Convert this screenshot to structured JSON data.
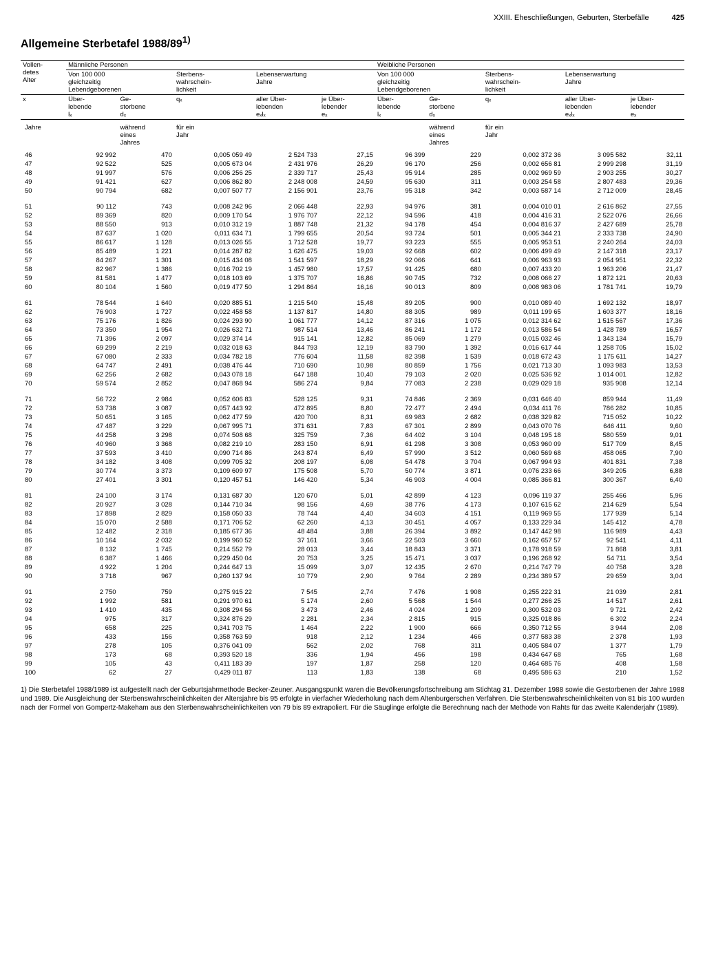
{
  "header": {
    "section": "XXIII. Eheschließungen, Geburten, Sterbefälle",
    "page": "425"
  },
  "title": "Allgemeine Sterbetafel 1988/89",
  "title_sup": "1)",
  "col_labels": {
    "age_top": "Vollen-\ndetes\nAlter",
    "male": "Männliche Personen",
    "female": "Weibliche Personen",
    "von100k": "Von 100 000\ngleichzeitig\nLebendgeborenen",
    "sterb": "Sterbens-\nwahrschein-\nlichkeit",
    "leb": "Lebenserwartung\nJahre",
    "uber": "Über-\nlebende\nlₓ",
    "gest": "Ge-\nstorbene\ndₓ",
    "qx": "qₓ",
    "aller": "aller Über-\nlebenden\neₓlₓ",
    "je": "je Über-\nlebender\neₓ",
    "x": "x",
    "jahre": "Jahre",
    "wahrend": "während\neines\nJahres",
    "furein": "für ein\nJahr"
  },
  "groups": [
    [
      [
        "46",
        "92 992",
        "470",
        "0,005 059 49",
        "2 524 733",
        "27,15",
        "96 399",
        "229",
        "0,002 372 36",
        "3 095 582",
        "32,11"
      ],
      [
        "47",
        "92 522",
        "525",
        "0,005 673 04",
        "2 431 976",
        "26,29",
        "96 170",
        "256",
        "0,002 656 81",
        "2 999 298",
        "31,19"
      ],
      [
        "48",
        "91 997",
        "576",
        "0,006 256 25",
        "2 339 717",
        "25,43",
        "95 914",
        "285",
        "0,002 969 59",
        "2 903 255",
        "30,27"
      ],
      [
        "49",
        "91 421",
        "627",
        "0,006 862 80",
        "2 248 008",
        "24,59",
        "95 630",
        "311",
        "0,003 254 58",
        "2 807 483",
        "29,36"
      ],
      [
        "50",
        "90 794",
        "682",
        "0,007 507 77",
        "2 156 901",
        "23,76",
        "95 318",
        "342",
        "0,003 587 14",
        "2 712 009",
        "28,45"
      ]
    ],
    [
      [
        "51",
        "90 112",
        "743",
        "0,008 242 96",
        "2 066 448",
        "22,93",
        "94 976",
        "381",
        "0,004 010 01",
        "2 616 862",
        "27,55"
      ],
      [
        "52",
        "89 369",
        "820",
        "0,009 170 54",
        "1 976 707",
        "22,12",
        "94 596",
        "418",
        "0,004 416 31",
        "2 522 076",
        "26,66"
      ],
      [
        "53",
        "88 550",
        "913",
        "0,010 312 19",
        "1 887 748",
        "21,32",
        "94 178",
        "454",
        "0,004 816 37",
        "2 427 689",
        "25,78"
      ],
      [
        "54",
        "87 637",
        "1 020",
        "0,011 634 71",
        "1 799 655",
        "20,54",
        "93 724",
        "501",
        "0,005 344 21",
        "2 333 738",
        "24,90"
      ],
      [
        "55",
        "86 617",
        "1 128",
        "0,013 026 55",
        "1 712 528",
        "19,77",
        "93 223",
        "555",
        "0,005 953 51",
        "2 240 264",
        "24,03"
      ],
      [
        "56",
        "85 489",
        "1 221",
        "0,014 287 82",
        "1 626 475",
        "19,03",
        "92 668",
        "602",
        "0,006 499 49",
        "2 147 318",
        "23,17"
      ],
      [
        "57",
        "84 267",
        "1 301",
        "0,015 434 08",
        "1 541 597",
        "18,29",
        "92 066",
        "641",
        "0,006 963 93",
        "2 054 951",
        "22,32"
      ],
      [
        "58",
        "82 967",
        "1 386",
        "0,016 702 19",
        "1 457 980",
        "17,57",
        "91 425",
        "680",
        "0,007 433 20",
        "1 963 206",
        "21,47"
      ],
      [
        "59",
        "81 581",
        "1 477",
        "0,018 103 69",
        "1 375 707",
        "16,86",
        "90 745",
        "732",
        "0,008 066 27",
        "1 872 121",
        "20,63"
      ],
      [
        "60",
        "80 104",
        "1 560",
        "0,019 477 50",
        "1 294 864",
        "16,16",
        "90 013",
        "809",
        "0,008 983 06",
        "1 781 741",
        "19,79"
      ]
    ],
    [
      [
        "61",
        "78 544",
        "1 640",
        "0,020 885 51",
        "1 215 540",
        "15,48",
        "89 205",
        "900",
        "0,010 089 40",
        "1 692 132",
        "18,97"
      ],
      [
        "62",
        "76 903",
        "1 727",
        "0,022 458 58",
        "1 137 817",
        "14,80",
        "88 305",
        "989",
        "0,011 199 65",
        "1 603 377",
        "18,16"
      ],
      [
        "63",
        "75 176",
        "1 826",
        "0,024 293 90",
        "1 061 777",
        "14,12",
        "87 316",
        "1 075",
        "0,012 314 62",
        "1 515 567",
        "17,36"
      ],
      [
        "64",
        "73 350",
        "1 954",
        "0,026 632 71",
        "987 514",
        "13,46",
        "86 241",
        "1 172",
        "0,013 586 54",
        "1 428 789",
        "16,57"
      ],
      [
        "65",
        "71 396",
        "2 097",
        "0,029 374 14",
        "915 141",
        "12,82",
        "85 069",
        "1 279",
        "0,015 032 46",
        "1 343 134",
        "15,79"
      ],
      [
        "66",
        "69 299",
        "2 219",
        "0,032 018 63",
        "844 793",
        "12,19",
        "83 790",
        "1 392",
        "0,016 617 44",
        "1 258 705",
        "15,02"
      ],
      [
        "67",
        "67 080",
        "2 333",
        "0,034 782 18",
        "776 604",
        "11,58",
        "82 398",
        "1 539",
        "0,018 672 43",
        "1 175 611",
        "14,27"
      ],
      [
        "68",
        "64 747",
        "2 491",
        "0,038 476 44",
        "710 690",
        "10,98",
        "80 859",
        "1 756",
        "0,021 713 30",
        "1 093 983",
        "13,53"
      ],
      [
        "69",
        "62 256",
        "2 682",
        "0,043 078 18",
        "647 188",
        "10,40",
        "79 103",
        "2 020",
        "0,025 536 92",
        "1 014 001",
        "12,82"
      ],
      [
        "70",
        "59 574",
        "2 852",
        "0,047 868 94",
        "586 274",
        "9,84",
        "77 083",
        "2 238",
        "0,029 029 18",
        "935 908",
        "12,14"
      ]
    ],
    [
      [
        "71",
        "56 722",
        "2 984",
        "0,052 606 83",
        "528 125",
        "9,31",
        "74 846",
        "2 369",
        "0,031 646 40",
        "859 944",
        "11,49"
      ],
      [
        "72",
        "53 738",
        "3 087",
        "0,057 443 92",
        "472 895",
        "8,80",
        "72 477",
        "2 494",
        "0,034 411 76",
        "786 282",
        "10,85"
      ],
      [
        "73",
        "50 651",
        "3 165",
        "0,062 477 59",
        "420 700",
        "8,31",
        "69 983",
        "2 682",
        "0,038 329 82",
        "715 052",
        "10,22"
      ],
      [
        "74",
        "47 487",
        "3 229",
        "0,067 995 71",
        "371 631",
        "7,83",
        "67 301",
        "2 899",
        "0,043 070 76",
        "646 411",
        "9,60"
      ],
      [
        "75",
        "44 258",
        "3 298",
        "0,074 508 68",
        "325 759",
        "7,36",
        "64 402",
        "3 104",
        "0,048 195 18",
        "580 559",
        "9,01"
      ],
      [
        "76",
        "40 960",
        "3 368",
        "0,082 219 10",
        "283 150",
        "6,91",
        "61 298",
        "3 308",
        "0,053 960 09",
        "517 709",
        "8,45"
      ],
      [
        "77",
        "37 593",
        "3 410",
        "0,090 714 86",
        "243 874",
        "6,49",
        "57 990",
        "3 512",
        "0,060 569 68",
        "458 065",
        "7,90"
      ],
      [
        "78",
        "34 182",
        "3 408",
        "0,099 705 32",
        "208 197",
        "6,08",
        "54 478",
        "3 704",
        "0,067 994 93",
        "401 831",
        "7,38"
      ],
      [
        "79",
        "30 774",
        "3 373",
        "0,109 609 97",
        "175 508",
        "5,70",
        "50 774",
        "3 871",
        "0,076 233 66",
        "349 205",
        "6,88"
      ],
      [
        "80",
        "27 401",
        "3 301",
        "0,120 457 51",
        "146 420",
        "5,34",
        "46 903",
        "4 004",
        "0,085 366 81",
        "300 367",
        "6,40"
      ]
    ],
    [
      [
        "81",
        "24 100",
        "3 174",
        "0,131 687 30",
        "120 670",
        "5,01",
        "42 899",
        "4 123",
        "0,096 119 37",
        "255 466",
        "5,96"
      ],
      [
        "82",
        "20 927",
        "3 028",
        "0,144 710 34",
        "98 156",
        "4,69",
        "38 776",
        "4 173",
        "0,107 615 62",
        "214 629",
        "5,54"
      ],
      [
        "83",
        "17 898",
        "2 829",
        "0,158 050 33",
        "78 744",
        "4,40",
        "34 603",
        "4 151",
        "0,119 969 55",
        "177 939",
        "5,14"
      ],
      [
        "84",
        "15 070",
        "2 588",
        "0,171 706 52",
        "62 260",
        "4,13",
        "30 451",
        "4 057",
        "0,133 229 34",
        "145 412",
        "4,78"
      ],
      [
        "85",
        "12 482",
        "2 318",
        "0,185 677 36",
        "48 484",
        "3,88",
        "26 394",
        "3 892",
        "0,147 442 98",
        "116 989",
        "4,43"
      ],
      [
        "86",
        "10 164",
        "2 032",
        "0,199 960 52",
        "37 161",
        "3,66",
        "22 503",
        "3 660",
        "0,162 657 57",
        "92 541",
        "4,11"
      ],
      [
        "87",
        "8 132",
        "1 745",
        "0,214 552 79",
        "28 013",
        "3,44",
        "18 843",
        "3 371",
        "0,178 918 59",
        "71 868",
        "3,81"
      ],
      [
        "88",
        "6 387",
        "1 466",
        "0,229 450 04",
        "20 753",
        "3,25",
        "15 471",
        "3 037",
        "0,196 268 92",
        "54 711",
        "3,54"
      ],
      [
        "89",
        "4 922",
        "1 204",
        "0,244 647 13",
        "15 099",
        "3,07",
        "12 435",
        "2 670",
        "0,214 747 79",
        "40 758",
        "3,28"
      ],
      [
        "90",
        "3 718",
        "967",
        "0,260 137 94",
        "10 779",
        "2,90",
        "9 764",
        "2 289",
        "0,234 389 57",
        "29 659",
        "3,04"
      ]
    ],
    [
      [
        "91",
        "2 750",
        "759",
        "0,275 915 22",
        "7 545",
        "2,74",
        "7 476",
        "1 908",
        "0,255 222 31",
        "21 039",
        "2,81"
      ],
      [
        "92",
        "1 992",
        "581",
        "0,291 970 61",
        "5 174",
        "2,60",
        "5 568",
        "1 544",
        "0,277 266 25",
        "14 517",
        "2,61"
      ],
      [
        "93",
        "1 410",
        "435",
        "0,308 294 56",
        "3 473",
        "2,46",
        "4 024",
        "1 209",
        "0,300 532 03",
        "9 721",
        "2,42"
      ],
      [
        "94",
        "975",
        "317",
        "0,324 876 29",
        "2 281",
        "2,34",
        "2 815",
        "915",
        "0,325 018 86",
        "6 302",
        "2,24"
      ],
      [
        "95",
        "658",
        "225",
        "0,341 703 75",
        "1 464",
        "2,22",
        "1 900",
        "666",
        "0,350 712 55",
        "3 944",
        "2,08"
      ],
      [
        "96",
        "433",
        "156",
        "0,358 763 59",
        "918",
        "2,12",
        "1 234",
        "466",
        "0,377 583 38",
        "2 378",
        "1,93"
      ],
      [
        "97",
        "278",
        "105",
        "0,376 041 09",
        "562",
        "2,02",
        "768",
        "311",
        "0,405 584 07",
        "1 377",
        "1,79"
      ],
      [
        "98",
        "173",
        "68",
        "0,393 520 18",
        "336",
        "1,94",
        "456",
        "198",
        "0,434 647 68",
        "765",
        "1,68"
      ],
      [
        "99",
        "105",
        "43",
        "0,411 183 39",
        "197",
        "1,87",
        "258",
        "120",
        "0,464 685 76",
        "408",
        "1,58"
      ],
      [
        "100",
        "62",
        "27",
        "0,429 011 87",
        "113",
        "1,83",
        "138",
        "68",
        "0,495 586 63",
        "210",
        "1,52"
      ]
    ]
  ],
  "footnote": "1) Die Sterbetafel 1988/1989 ist aufgestellt nach der Geburtsjahrmethode Becker-Zeuner. Ausgangspunkt waren die Bevölkerungsfortschreibung am Stichtag 31. Dezember 1988 sowie die Gestorbenen der Jahre 1988 und 1989. Die Ausgleichung der Sterbenswahrscheinlichkeiten der Altersjahre bis 95 erfolgte in vierfacher Wiederholung nach dem Altenburgerschen Verfahren. Die Sterbenswahrscheinlichkeiten von 81 bis 100 wurden nach der Formel von Gompertz-Makeham aus den Sterbenswahrscheinlichkeiten von 79 bis 89 extrapoliert. Für die Säuglinge erfolgte die Berechnung nach der Methode von Rahts für das zweite Kalenderjahr (1989)."
}
